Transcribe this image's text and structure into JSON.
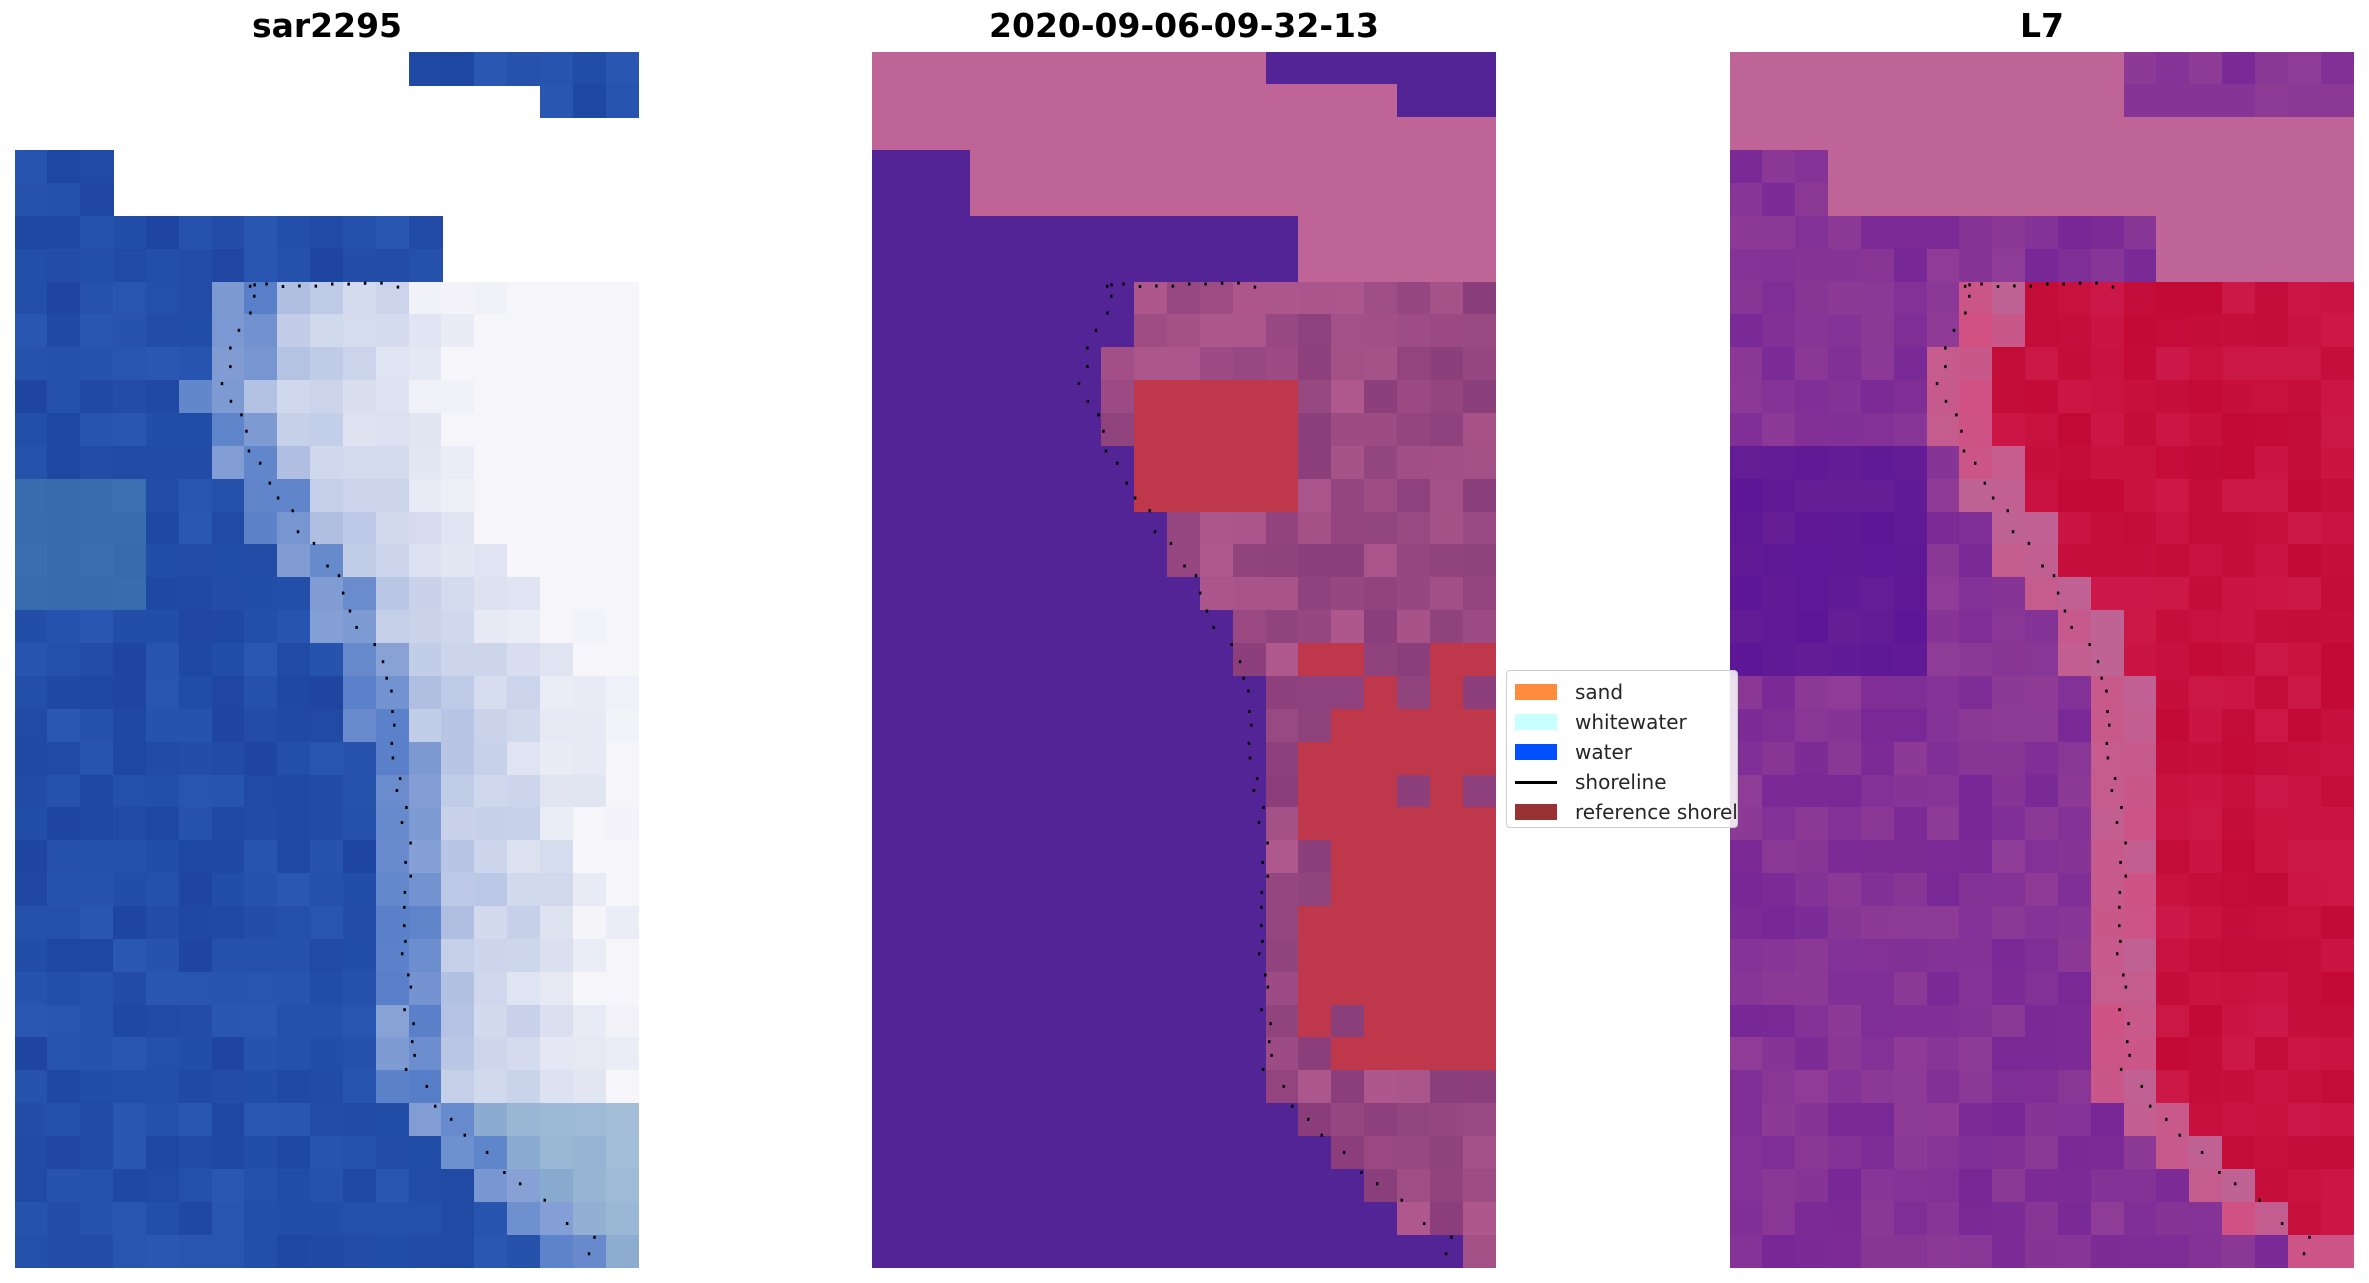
{
  "panels": [
    {
      "title": "sar2295"
    },
    {
      "title": "2020-09-06-09-32-13"
    },
    {
      "title": "L7"
    }
  ],
  "legend": {
    "items": [
      {
        "label": "sand",
        "color": "#ff8c3c",
        "kind": "patch"
      },
      {
        "label": "whitewater",
        "color": "#c8ffff",
        "kind": "patch"
      },
      {
        "label": "water",
        "color": "#0050ff",
        "kind": "patch"
      },
      {
        "label": "shoreline",
        "color": "#000000",
        "kind": "line"
      },
      {
        "label": "reference shoreline",
        "color": "#993333",
        "kind": "patch"
      }
    ]
  }
}
